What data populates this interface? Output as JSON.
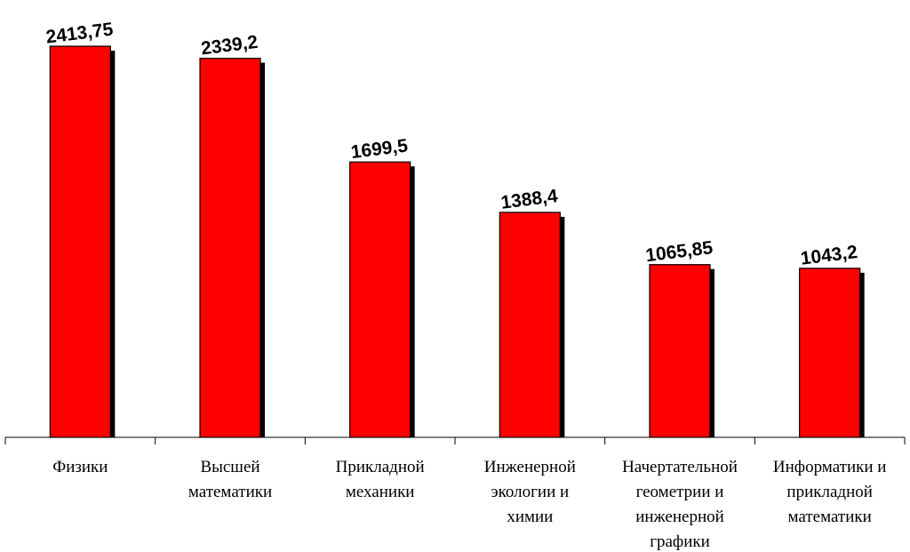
{
  "chart_data": {
    "type": "bar",
    "categories": [
      [
        "Физики"
      ],
      [
        "Высшей",
        "математики"
      ],
      [
        "Прикладной",
        "механики"
      ],
      [
        "Инженерной",
        "экологии и",
        "химии"
      ],
      [
        "Начертательной",
        "геометрии и",
        "инженерной",
        "графики"
      ],
      [
        "Информатики и",
        "прикладной",
        "математики"
      ]
    ],
    "values": [
      2413.75,
      2339.2,
      1699.5,
      1388.4,
      1065.85,
      1043.2
    ],
    "value_labels": [
      "2413,75",
      "2339,2",
      "1699,5",
      "1388,4",
      "1065,85",
      "1043,2"
    ],
    "ylim": [
      0,
      2413.75
    ],
    "grid": false,
    "colors": {
      "bar": "#ff0000",
      "shadow": "#000000"
    }
  }
}
